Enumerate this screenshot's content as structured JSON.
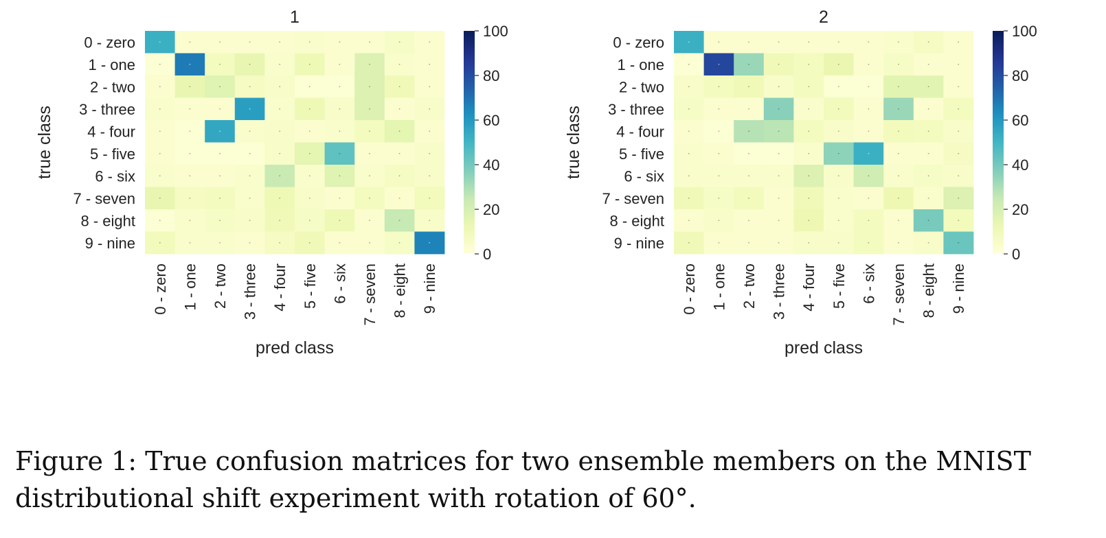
{
  "chart_data": [
    {
      "type": "heatmap",
      "title": "1",
      "xlabel": "pred class",
      "ylabel": "true class",
      "categories": [
        "0 - zero",
        "1 - one",
        "2 - two",
        "3 - three",
        "4 - four",
        "5 - five",
        "6 - six",
        "7 - seven",
        "8 - eight",
        "9 - nine"
      ],
      "colorbar": {
        "range": [
          0,
          100
        ],
        "ticks": [
          "0",
          "20",
          "40",
          "60",
          "80",
          "100"
        ]
      },
      "colormap": "YlGnBu",
      "values": [
        [
          52,
          3,
          3,
          3,
          3,
          4,
          3,
          3,
          6,
          3
        ],
        [
          2,
          68,
          8,
          14,
          4,
          11,
          3,
          18,
          4,
          3
        ],
        [
          3,
          14,
          17,
          7,
          5,
          2,
          2,
          18,
          10,
          3
        ],
        [
          4,
          3,
          3,
          58,
          4,
          11,
          5,
          18,
          3,
          5
        ],
        [
          3,
          2,
          55,
          4,
          5,
          3,
          4,
          8,
          15,
          3
        ],
        [
          3,
          2,
          2,
          2,
          5,
          15,
          44,
          3,
          3,
          5
        ],
        [
          4,
          3,
          3,
          4,
          24,
          4,
          17,
          4,
          7,
          5
        ],
        [
          14,
          7,
          8,
          4,
          11,
          5,
          3,
          8,
          3,
          9
        ],
        [
          2,
          4,
          6,
          5,
          10,
          6,
          11,
          3,
          25,
          5
        ],
        [
          9,
          4,
          4,
          3,
          7,
          10,
          3,
          3,
          6,
          66
        ]
      ]
    },
    {
      "type": "heatmap",
      "title": "2",
      "xlabel": "pred class",
      "ylabel": "true class",
      "categories": [
        "0 - zero",
        "1 - one",
        "2 - two",
        "3 - three",
        "4 - four",
        "5 - five",
        "6 - six",
        "7 - seven",
        "8 - eight",
        "9 - nine"
      ],
      "colorbar": {
        "range": [
          0,
          100
        ],
        "ticks": [
          "0",
          "20",
          "40",
          "60",
          "80",
          "100"
        ]
      },
      "colormap": "YlGnBu",
      "values": [
        [
          52,
          3,
          3,
          3,
          3,
          3,
          3,
          4,
          7,
          3
        ],
        [
          2,
          82,
          33,
          10,
          8,
          13,
          3,
          6,
          3,
          3
        ],
        [
          5,
          8,
          10,
          5,
          8,
          2,
          2,
          16,
          16,
          3
        ],
        [
          6,
          3,
          3,
          36,
          4,
          9,
          3,
          33,
          3,
          8
        ],
        [
          3,
          2,
          28,
          27,
          8,
          5,
          3,
          9,
          8,
          5
        ],
        [
          4,
          3,
          2,
          2,
          4,
          35,
          52,
          3,
          3,
          7
        ],
        [
          4,
          4,
          4,
          4,
          18,
          5,
          22,
          4,
          6,
          5
        ],
        [
          10,
          6,
          9,
          3,
          10,
          4,
          3,
          12,
          4,
          18
        ],
        [
          3,
          5,
          3,
          3,
          12,
          4,
          8,
          3,
          39,
          9
        ],
        [
          10,
          3,
          3,
          3,
          5,
          5,
          8,
          3,
          5,
          42
        ]
      ]
    }
  ],
  "caption": "Figure 1: True confusion matrices for two ensemble members on the MNIST distributional shift experiment with rotation of 60°."
}
